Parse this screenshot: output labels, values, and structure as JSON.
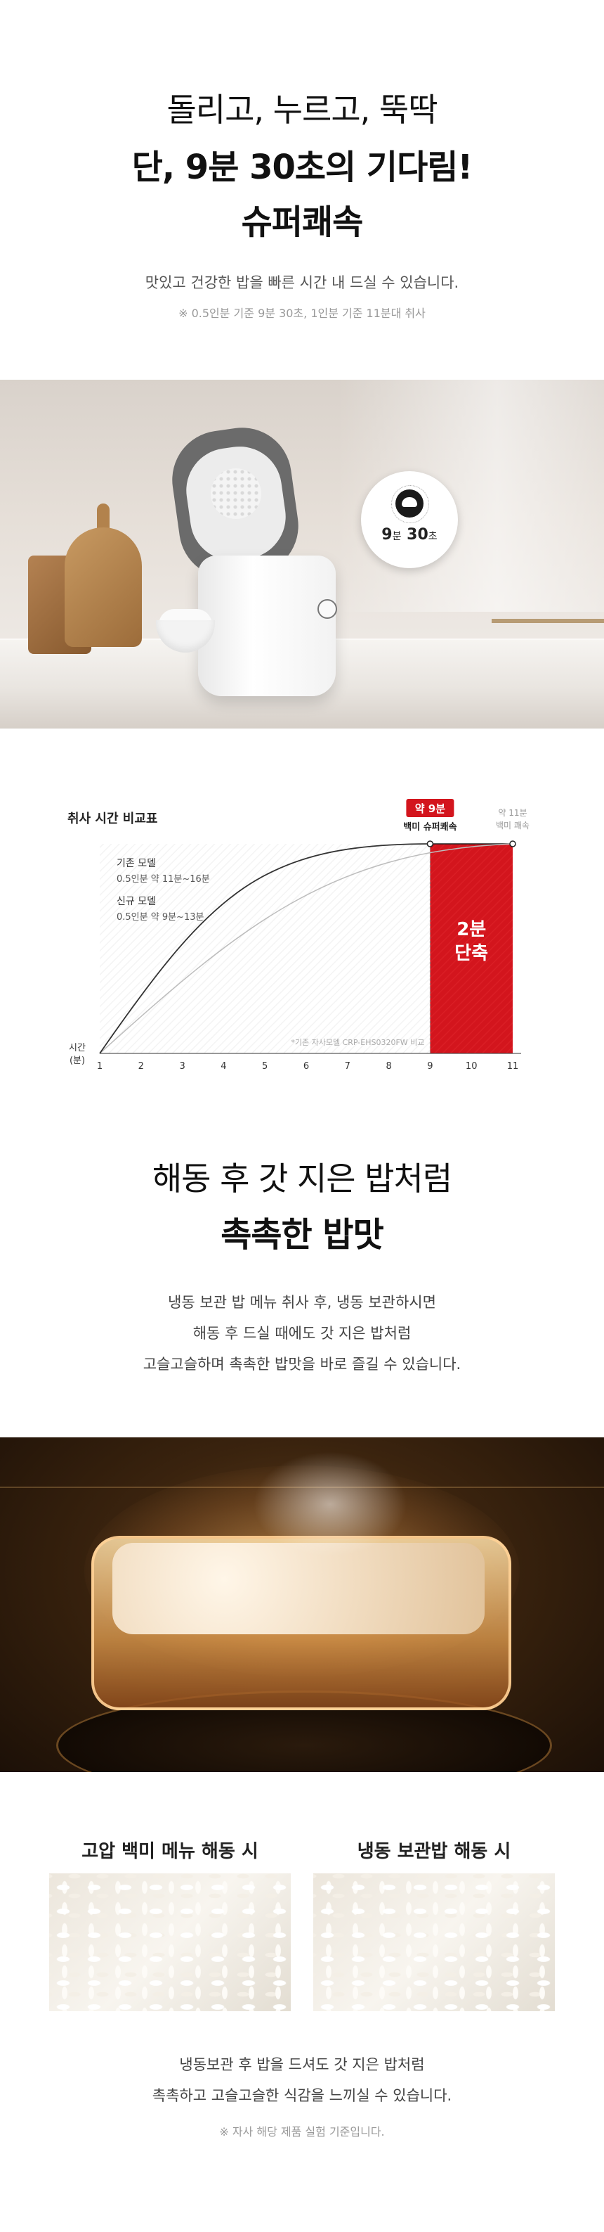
{
  "intro": {
    "headline_line1": "돌리고, 누르고, 뚝딱",
    "headline_line2": "단, 9분 30초의 기다림!",
    "headline_line3": "슈퍼쾌속",
    "description": "맛있고 건강한 밥을 빠른 시간 내 드실 수 있습니다.",
    "note": "※ 0.5인분 기준 9분 30초, 1인분 기준 11분대 취사"
  },
  "hero_photo": {
    "badge_value_minutes": "9",
    "badge_unit_minutes": "분",
    "badge_value_seconds": "30",
    "badge_unit_seconds": "초",
    "icon": "rice-bowl-icon"
  },
  "chart_data": {
    "type": "line",
    "title": "취사 시간 비교표",
    "xlabel": "시간 (분)",
    "ylabel": "",
    "x": [
      1,
      2,
      3,
      4,
      5,
      6,
      7,
      8,
      9,
      10,
      11
    ],
    "xlim": [
      1,
      11
    ],
    "grid": false,
    "series": [
      {
        "name": "기존 모델",
        "detail": "0.5인분   약 11분~16분",
        "end_x": 11,
        "color": "#bdbdbd"
      },
      {
        "name": "신규 모델",
        "detail": "0.5인분   약 9분~13분",
        "end_x": 9,
        "color": "#333333"
      }
    ],
    "annotations": {
      "new_badge": "약 9분",
      "new_label": "백미 슈퍼쾌속",
      "old_label_line1": "약 11분",
      "old_label_line2": "백미 쾌속",
      "saving_line1": "2분",
      "saving_line2": "단축",
      "footnote": "*기존 자사모델 CRP-EHS0320FW 비교"
    },
    "colors": {
      "accent": "#d3151d",
      "old": "#bdbdbd",
      "new": "#333333"
    }
  },
  "defrost": {
    "headline_line1": "해동 후 갓 지은 밥처럼",
    "headline_line2": "촉촉한 밥맛",
    "paragraph_line1": "냉동 보관 밥 메뉴 취사 후, 냉동 보관하시면",
    "paragraph_line2": "해동 후 드실 때에도 갓 지은 밥처럼",
    "paragraph_line3": "고슬고슬하며 촉촉한 밥맛을 바로 즐길 수 있습니다."
  },
  "comparison": {
    "left_label": "고압 백미 메뉴 해동 시",
    "right_label": "냉동 보관밥 해동 시",
    "paragraph_line1": "냉동보관 후 밥을 드셔도 갓 지은 밥처럼",
    "paragraph_line2": "촉촉하고 고슬고슬한 식감을 느끼실 수 있습니다.",
    "note": "※ 자사 해당 제품 실험 기준입니다."
  }
}
